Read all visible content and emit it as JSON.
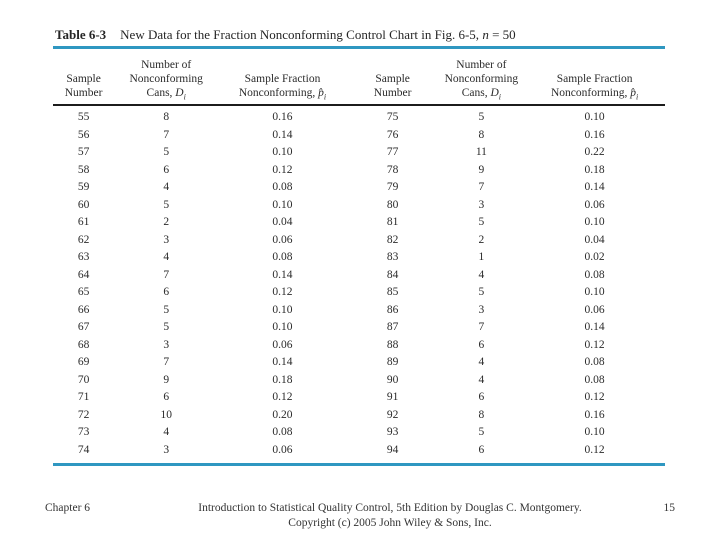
{
  "table": {
    "label": "Table 6-3",
    "caption_pre": "New Data for the Fraction Nonconforming Control Chart in Fig. 6-5, ",
    "caption_var": "n",
    "caption_post": " = 50",
    "columns": [
      {
        "lines": [
          "Sample",
          "Number"
        ]
      },
      {
        "lines": [
          "Number of",
          "Nonconforming"
        ],
        "math_line": {
          "pre": "Cans, ",
          "var": "D",
          "sub": "i"
        }
      },
      {
        "lines": [
          "Sample Fraction"
        ],
        "math_line": {
          "pre": "Nonconforming, ",
          "var": "p̂",
          "sub": "i"
        }
      },
      {
        "lines": [
          "Sample",
          "Number"
        ]
      },
      {
        "lines": [
          "Number of",
          "Nonconforming"
        ],
        "math_line": {
          "pre": "Cans, ",
          "var": "D",
          "sub": "i"
        }
      },
      {
        "lines": [
          "Sample Fraction"
        ],
        "math_line": {
          "pre": "Nonconforming, ",
          "var": "p̂",
          "sub": "i"
        }
      }
    ],
    "rows": [
      [
        "55",
        "8",
        "0.16",
        "75",
        "5",
        "0.10"
      ],
      [
        "56",
        "7",
        "0.14",
        "76",
        "8",
        "0.16"
      ],
      [
        "57",
        "5",
        "0.10",
        "77",
        "11",
        "0.22"
      ],
      [
        "58",
        "6",
        "0.12",
        "78",
        "9",
        "0.18"
      ],
      [
        "59",
        "4",
        "0.08",
        "79",
        "7",
        "0.14"
      ],
      [
        "60",
        "5",
        "0.10",
        "80",
        "3",
        "0.06"
      ],
      [
        "61",
        "2",
        "0.04",
        "81",
        "5",
        "0.10"
      ],
      [
        "62",
        "3",
        "0.06",
        "82",
        "2",
        "0.04"
      ],
      [
        "63",
        "4",
        "0.08",
        "83",
        "1",
        "0.02"
      ],
      [
        "64",
        "7",
        "0.14",
        "84",
        "4",
        "0.08"
      ],
      [
        "65",
        "6",
        "0.12",
        "85",
        "5",
        "0.10"
      ],
      [
        "66",
        "5",
        "0.10",
        "86",
        "3",
        "0.06"
      ],
      [
        "67",
        "5",
        "0.10",
        "87",
        "7",
        "0.14"
      ],
      [
        "68",
        "3",
        "0.06",
        "88",
        "6",
        "0.12"
      ],
      [
        "69",
        "7",
        "0.14",
        "89",
        "4",
        "0.08"
      ],
      [
        "70",
        "9",
        "0.18",
        "90",
        "4",
        "0.08"
      ],
      [
        "71",
        "6",
        "0.12",
        "91",
        "6",
        "0.12"
      ],
      [
        "72",
        "10",
        "0.20",
        "92",
        "8",
        "0.16"
      ],
      [
        "73",
        "4",
        "0.08",
        "93",
        "5",
        "0.10"
      ],
      [
        "74",
        "3",
        "0.06",
        "94",
        "6",
        "0.12"
      ]
    ]
  },
  "footer": {
    "chapter": "Chapter 6",
    "credit_line1": "Introduction to Statistical Quality Control, 5th Edition by Douglas C. Montgomery.",
    "credit_line2": "Copyright (c) 2005 John Wiley & Sons, Inc.",
    "page_number": "15"
  },
  "colors": {
    "rule_blue": "#2f97c1",
    "rule_black": "#1c1c1c",
    "text": "#2b2b2b"
  }
}
